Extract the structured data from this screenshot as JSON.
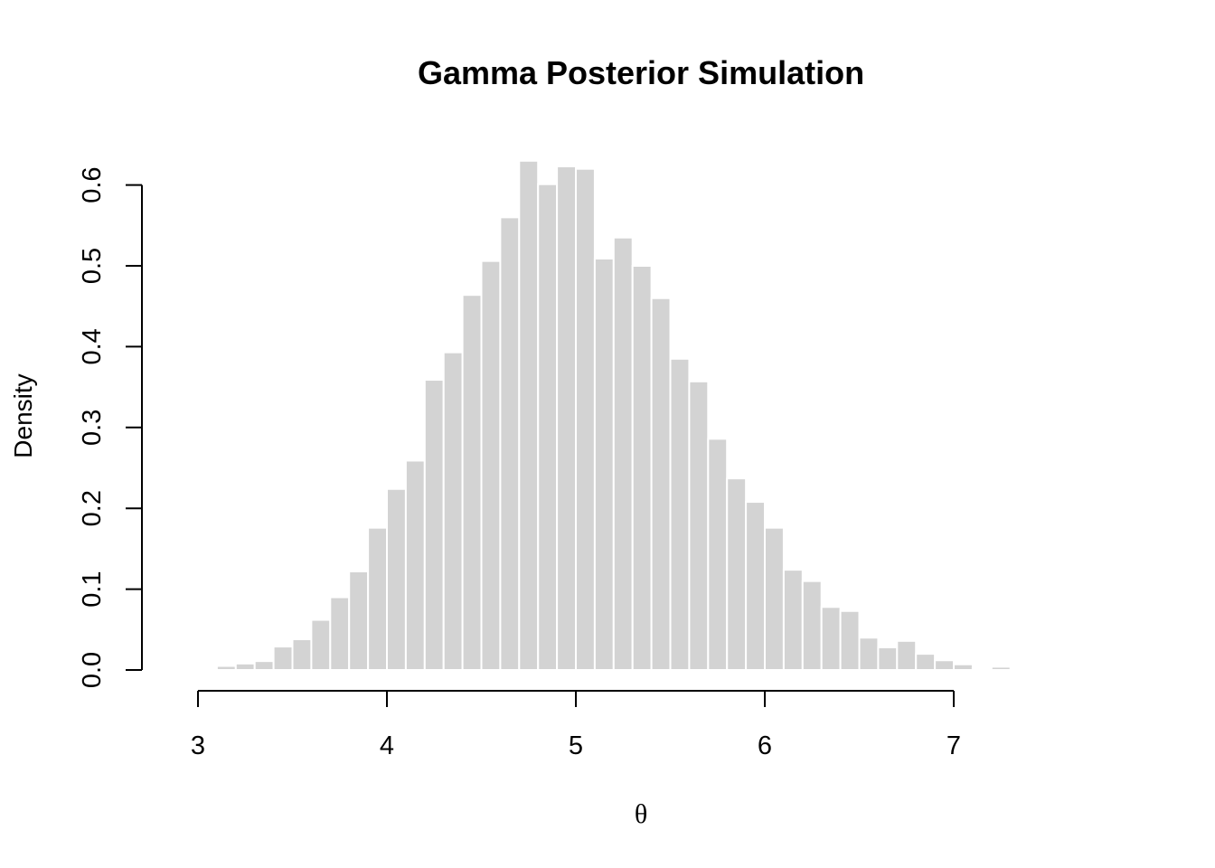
{
  "chart_data": {
    "type": "bar",
    "title": "Gamma Posterior Simulation",
    "xlabel": "θ",
    "ylabel": "Density",
    "xlim": [
      3,
      7.5
    ],
    "ylim": [
      0,
      0.63
    ],
    "x_ticks": [
      "3",
      "4",
      "5",
      "6",
      "7"
    ],
    "x_tick_values": [
      3,
      4,
      5,
      6,
      7
    ],
    "y_ticks": [
      "0.0",
      "0.1",
      "0.2",
      "0.3",
      "0.4",
      "0.5",
      "0.6"
    ],
    "y_tick_values": [
      0.0,
      0.1,
      0.2,
      0.3,
      0.4,
      0.5,
      0.6
    ],
    "bin_width": 0.1,
    "bin_starts": [
      3.1,
      3.2,
      3.3,
      3.4,
      3.5,
      3.6,
      3.7,
      3.8,
      3.9,
      4.0,
      4.1,
      4.2,
      4.3,
      4.4,
      4.5,
      4.6,
      4.7,
      4.8,
      4.9,
      5.0,
      5.1,
      5.2,
      5.3,
      5.4,
      5.5,
      5.6,
      5.7,
      5.8,
      5.9,
      6.0,
      6.1,
      6.2,
      6.3,
      6.4,
      6.5,
      6.6,
      6.7,
      6.8,
      6.9,
      7.0,
      7.1,
      7.2
    ],
    "values": [
      0.005,
      0.008,
      0.011,
      0.029,
      0.038,
      0.062,
      0.09,
      0.122,
      0.176,
      0.224,
      0.259,
      0.359,
      0.393,
      0.464,
      0.506,
      0.56,
      0.63,
      0.601,
      0.623,
      0.62,
      0.509,
      0.535,
      0.5,
      0.46,
      0.385,
      0.357,
      0.286,
      0.237,
      0.208,
      0.176,
      0.124,
      0.11,
      0.078,
      0.073,
      0.04,
      0.028,
      0.036,
      0.02,
      0.012,
      0.007,
      0.002,
      0.004
    ],
    "bar_color": "#d3d3d3",
    "grid": false
  }
}
